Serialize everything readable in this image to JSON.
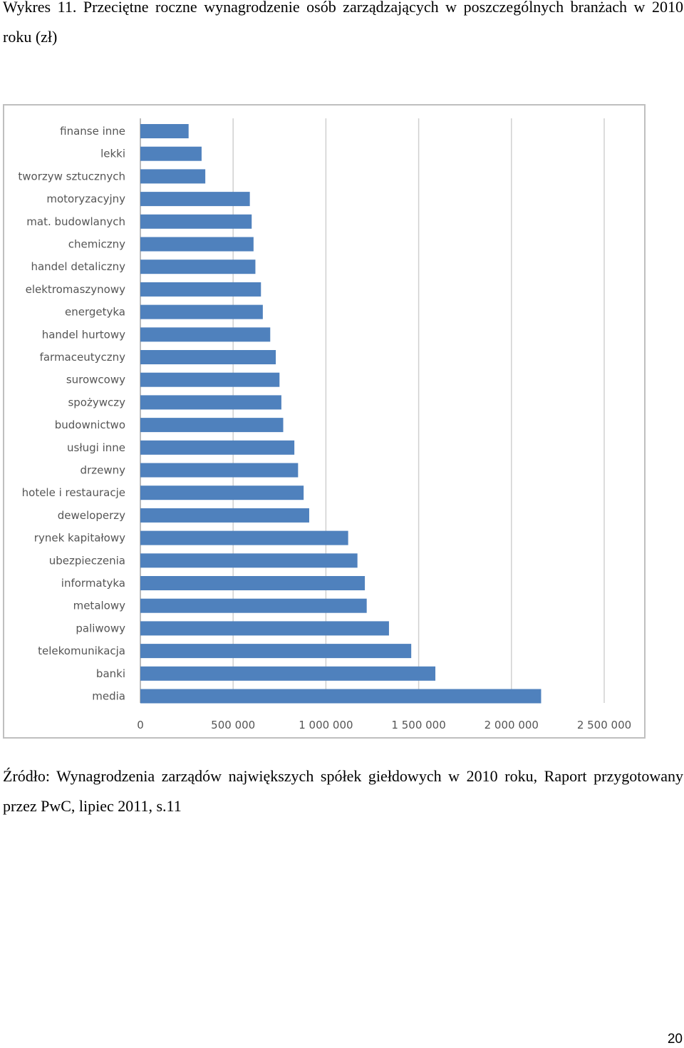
{
  "document": {
    "title": "Wykres 11. Przeciętne roczne wynagrodzenie osób zarządzających w poszczególnych branżach w 2010 roku (zł)",
    "source": "Źródło: Wynagrodzenia zarządów największych spółek giełdowych w 2010 roku, Raport przygotowany przez PwC, lipiec 2011, s.11",
    "page_number": "20"
  },
  "chart_data": {
    "type": "bar",
    "orientation": "horizontal",
    "title": "",
    "xlabel": "",
    "ylabel": "",
    "xlim": [
      0,
      2500000
    ],
    "grid": true,
    "legend": "none",
    "bar_color": "#4f81bd",
    "ticks": [
      "0",
      "500 000",
      "1 000 000",
      "1 500 000",
      "2 000 000",
      "2 500 000"
    ],
    "tick_values": [
      0,
      500000,
      1000000,
      1500000,
      2000000,
      2500000
    ],
    "categories": [
      "finanse inne",
      "lekki",
      "tworzyw sztucznych",
      "motoryzacyjny",
      "mat. budowlanych",
      "chemiczny",
      "handel detaliczny",
      "elektromaszynowy",
      "energetyka",
      "handel hurtowy",
      "farmaceutyczny",
      "surowcowy",
      "spożywczy",
      "budownictwo",
      "usługi inne",
      "drzewny",
      "hotele i restauracje",
      "deweloperzy",
      "rynek kapitałowy",
      "ubezpieczenia",
      "informatyka",
      "metalowy",
      "paliwowy",
      "telekomunikacja",
      "banki",
      "media"
    ],
    "values": [
      260000,
      330000,
      350000,
      590000,
      600000,
      610000,
      620000,
      650000,
      660000,
      700000,
      730000,
      750000,
      760000,
      770000,
      830000,
      850000,
      880000,
      910000,
      1120000,
      1170000,
      1210000,
      1220000,
      1340000,
      1460000,
      1590000,
      2160000
    ]
  }
}
